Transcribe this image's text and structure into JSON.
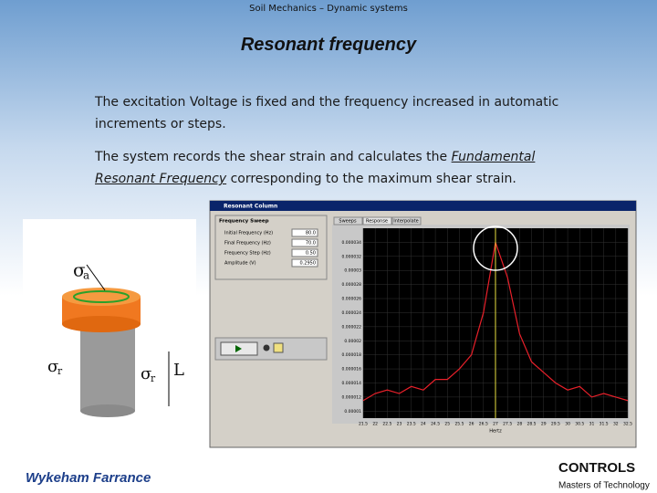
{
  "header": "Soil Mechanics – Dynamic systems",
  "title": "Resonant frequency",
  "paragraphs": [
    [
      "The excitation Voltage is fixed and the frequency increased in automatic increments or steps."
    ],
    [
      "The system records the shear strain and calculates the ",
      "Fundamental Resonant Frequency",
      " corresponding to the maximum shear strain."
    ]
  ],
  "diagram": {
    "labels": [
      {
        "symbol": "σ",
        "sub": "a"
      },
      {
        "symbol": "σ",
        "sub": "r"
      },
      {
        "symbol": "σ",
        "sub": "r"
      },
      {
        "symbol": "L"
      }
    ]
  },
  "software": {
    "window_title": "Resonant Column",
    "panel_title": "Frequency Sweep",
    "fields": [
      {
        "label": "Initial Frequency (Hz)",
        "value": "80.0"
      },
      {
        "label": "Final Frequency (Hz)",
        "value": "70.0"
      },
      {
        "label": "Frequency Step (Hz)",
        "value": "0.50"
      },
      {
        "label": "Amplitude (V)",
        "value": "0.2950"
      }
    ],
    "tabs": [
      "Sweeps",
      "Response",
      "Interpolate"
    ],
    "chart_data": {
      "type": "line",
      "x_label": "Hertz",
      "x": [
        21.5,
        22,
        22.5,
        23,
        23.5,
        24,
        24.5,
        25,
        25.5,
        26,
        26.5,
        27,
        27.5,
        28,
        28.5,
        29,
        29.5,
        30,
        30.5,
        31,
        31.5,
        32,
        32.5
      ],
      "series": [
        {
          "color": "#e8202a",
          "values": [
            1.15e-05,
            1.25e-05,
            1.3e-05,
            1.25e-05,
            1.35e-05,
            1.3e-05,
            1.45e-05,
            1.45e-05,
            1.6e-05,
            1.8e-05,
            2.4e-05,
            3.4e-05,
            2.9e-05,
            2.1e-05,
            1.7e-05,
            1.55e-05,
            1.4e-05,
            1.3e-05,
            1.35e-05,
            1.2e-05,
            1.25e-05,
            1.2e-05,
            1.15e-05
          ]
        }
      ],
      "xlim": [
        21.5,
        32.5
      ],
      "xticks": [
        21.5,
        22,
        22.5,
        23,
        23.5,
        24,
        24.5,
        25,
        25.5,
        26,
        26.5,
        27,
        27.5,
        28,
        28.5,
        29,
        29.5,
        30,
        30.5,
        31,
        31.5,
        32,
        32.5
      ],
      "ylim": [
        9e-06,
        3.6e-05
      ],
      "yticks": [
        1e-05,
        1.2e-05,
        1.4e-05,
        1.6e-05,
        1.8e-05,
        2e-05,
        2.2e-05,
        2.4e-05,
        2.6e-05,
        2.8e-05,
        3e-05,
        3.2e-05,
        3.4e-05
      ],
      "marker_x": 27,
      "marker_color": "#e8e040"
    }
  },
  "logos": {
    "left": "Wykeham Farrance",
    "right": "CONTROLS",
    "right_tagline": "Masters of Technology"
  }
}
